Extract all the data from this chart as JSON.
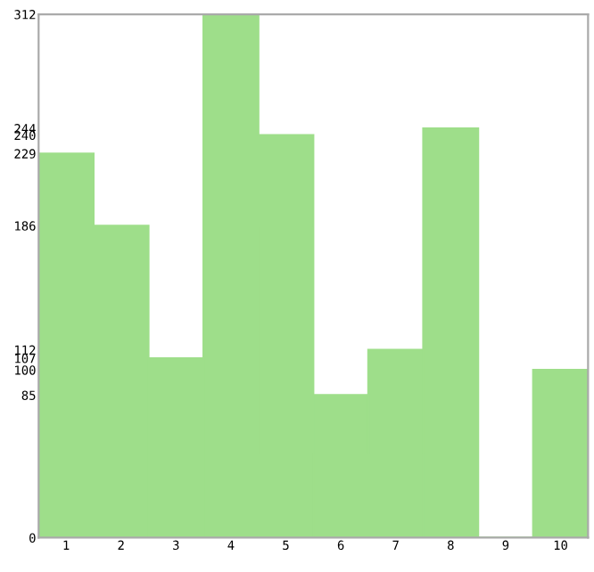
{
  "chart_data": {
    "type": "bar",
    "categories": [
      "1",
      "2",
      "3",
      "4",
      "5",
      "6",
      "7",
      "8",
      "9",
      "10"
    ],
    "values": [
      229,
      186,
      107,
      312,
      240,
      85,
      112,
      244,
      0,
      100
    ],
    "color": "#9ede8a",
    "ylim": [
      0,
      312
    ],
    "yticks": [
      0,
      85,
      100,
      107,
      112,
      186,
      229,
      240,
      244,
      312
    ],
    "grid": false
  }
}
